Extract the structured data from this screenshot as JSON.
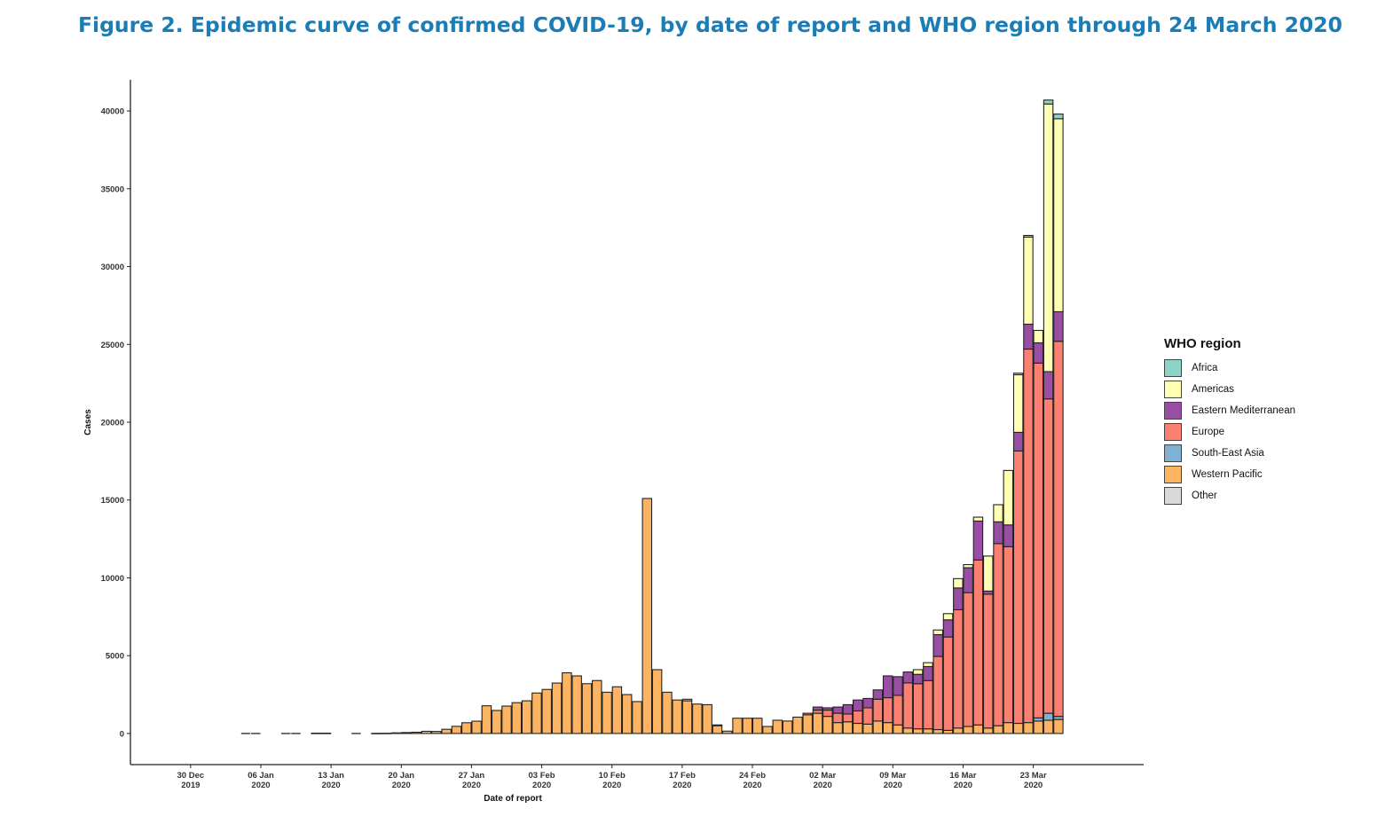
{
  "figure": {
    "title": "Figure 2. Epidemic curve of confirmed COVID-19, by date of report and WHO region through 24 March 2020"
  },
  "chart_data": {
    "type": "bar",
    "stacked": true,
    "xlabel": "Date of report",
    "ylabel": "Cases",
    "ylim": [
      -2000,
      42000
    ],
    "yticks": [
      0,
      5000,
      10000,
      15000,
      20000,
      25000,
      30000,
      35000,
      40000
    ],
    "xlim": [
      "2019-12-24",
      "2020-04-03"
    ],
    "xticks": [
      {
        "date": "2019-12-30",
        "line1": "30 Dec",
        "line2": "2019"
      },
      {
        "date": "2020-01-06",
        "line1": "06 Jan",
        "line2": "2020"
      },
      {
        "date": "2020-01-13",
        "line1": "13 Jan",
        "line2": "2020"
      },
      {
        "date": "2020-01-20",
        "line1": "20 Jan",
        "line2": "2020"
      },
      {
        "date": "2020-01-27",
        "line1": "27 Jan",
        "line2": "2020"
      },
      {
        "date": "2020-02-03",
        "line1": "03 Feb",
        "line2": "2020"
      },
      {
        "date": "2020-02-10",
        "line1": "10 Feb",
        "line2": "2020"
      },
      {
        "date": "2020-02-17",
        "line1": "17 Feb",
        "line2": "2020"
      },
      {
        "date": "2020-02-24",
        "line1": "24 Feb",
        "line2": "2020"
      },
      {
        "date": "2020-03-02",
        "line1": "02 Mar",
        "line2": "2020"
      },
      {
        "date": "2020-03-09",
        "line1": "09 Mar",
        "line2": "2020"
      },
      {
        "date": "2020-03-16",
        "line1": "16 Mar",
        "line2": "2020"
      },
      {
        "date": "2020-03-23",
        "line1": "23 Mar",
        "line2": "2020"
      }
    ],
    "grid": false,
    "legend_position": "right",
    "legend_title": "WHO region",
    "series": [
      {
        "name": "Western Pacific",
        "color": "#fdb462"
      },
      {
        "name": "South-East Asia",
        "color": "#80b1d3"
      },
      {
        "name": "Europe",
        "color": "#fb8072"
      },
      {
        "name": "Eastern Mediterranean",
        "color": "#984ea3"
      },
      {
        "name": "Americas",
        "color": "#ffffb3"
      },
      {
        "name": "Africa",
        "color": "#8dd3c7"
      },
      {
        "name": "Other",
        "color": "#d9d9d9"
      }
    ],
    "legend_order": [
      "Africa",
      "Americas",
      "Eastern Mediterranean",
      "Europe",
      "South-East Asia",
      "Western Pacific",
      "Other"
    ],
    "bars": [
      {
        "x": "2020-01-04",
        "values": [
          0,
          0,
          0,
          0,
          0,
          0,
          0
        ]
      },
      {
        "x": "2020-01-05",
        "values": [
          0,
          0,
          0,
          0,
          0,
          0,
          0
        ]
      },
      {
        "x": "2020-01-08",
        "values": [
          0,
          0,
          0,
          0,
          0,
          0,
          0
        ]
      },
      {
        "x": "2020-01-09",
        "values": [
          0,
          0,
          0,
          0,
          0,
          0,
          0
        ]
      },
      {
        "x": "2020-01-11",
        "values": [
          20,
          0,
          0,
          0,
          0,
          0,
          0
        ]
      },
      {
        "x": "2020-01-12",
        "values": [
          20,
          0,
          0,
          0,
          0,
          0,
          0
        ]
      },
      {
        "x": "2020-01-15",
        "values": [
          0,
          0,
          0,
          0,
          0,
          0,
          0
        ]
      },
      {
        "x": "2020-01-17",
        "values": [
          10,
          0,
          0,
          0,
          0,
          0,
          0
        ]
      },
      {
        "x": "2020-01-18",
        "values": [
          15,
          0,
          0,
          0,
          0,
          0,
          0
        ]
      },
      {
        "x": "2020-01-19",
        "values": [
          40,
          0,
          0,
          0,
          0,
          0,
          0
        ]
      },
      {
        "x": "2020-01-20",
        "values": [
          60,
          0,
          0,
          0,
          0,
          0,
          0
        ]
      },
      {
        "x": "2020-01-21",
        "values": [
          80,
          0,
          0,
          0,
          0,
          0,
          0
        ]
      },
      {
        "x": "2020-01-22",
        "values": [
          140,
          0,
          0,
          0,
          0,
          0,
          0
        ]
      },
      {
        "x": "2020-01-23",
        "values": [
          130,
          0,
          0,
          0,
          0,
          0,
          0
        ]
      },
      {
        "x": "2020-01-24",
        "values": [
          270,
          0,
          0,
          0,
          0,
          0,
          0
        ]
      },
      {
        "x": "2020-01-25",
        "values": [
          460,
          0,
          0,
          0,
          0,
          0,
          0
        ]
      },
      {
        "x": "2020-01-26",
        "values": [
          690,
          0,
          0,
          0,
          0,
          0,
          0
        ]
      },
      {
        "x": "2020-01-27",
        "values": [
          790,
          0,
          0,
          0,
          0,
          0,
          0
        ]
      },
      {
        "x": "2020-01-28",
        "values": [
          1780,
          0,
          0,
          0,
          0,
          0,
          0
        ]
      },
      {
        "x": "2020-01-29",
        "values": [
          1480,
          0,
          0,
          0,
          0,
          0,
          0
        ]
      },
      {
        "x": "2020-01-30",
        "values": [
          1760,
          0,
          0,
          0,
          0,
          0,
          0
        ]
      },
      {
        "x": "2020-01-31",
        "values": [
          1980,
          0,
          0,
          0,
          0,
          0,
          0
        ]
      },
      {
        "x": "2020-02-01",
        "values": [
          2100,
          0,
          0,
          0,
          0,
          0,
          0
        ]
      },
      {
        "x": "2020-02-02",
        "values": [
          2600,
          0,
          0,
          0,
          0,
          0,
          0
        ]
      },
      {
        "x": "2020-02-03",
        "values": [
          2830,
          0,
          0,
          0,
          0,
          0,
          0
        ]
      },
      {
        "x": "2020-02-04",
        "values": [
          3240,
          0,
          0,
          0,
          0,
          0,
          0
        ]
      },
      {
        "x": "2020-02-05",
        "values": [
          3900,
          0,
          0,
          0,
          0,
          0,
          0
        ]
      },
      {
        "x": "2020-02-06",
        "values": [
          3700,
          0,
          0,
          0,
          0,
          0,
          0
        ]
      },
      {
        "x": "2020-02-07",
        "values": [
          3200,
          0,
          0,
          0,
          0,
          0,
          0
        ]
      },
      {
        "x": "2020-02-08",
        "values": [
          3400,
          0,
          0,
          0,
          0,
          0,
          0
        ]
      },
      {
        "x": "2020-02-09",
        "values": [
          2650,
          0,
          0,
          0,
          0,
          0,
          0
        ]
      },
      {
        "x": "2020-02-10",
        "values": [
          3000,
          0,
          0,
          0,
          0,
          0,
          0
        ]
      },
      {
        "x": "2020-02-11",
        "values": [
          2500,
          0,
          0,
          0,
          0,
          0,
          0
        ]
      },
      {
        "x": "2020-02-12",
        "values": [
          2050,
          0,
          0,
          0,
          0,
          0,
          0
        ]
      },
      {
        "x": "2020-02-13",
        "values": [
          15100,
          0,
          0,
          0,
          0,
          0,
          0
        ]
      },
      {
        "x": "2020-02-14",
        "values": [
          4100,
          0,
          0,
          0,
          0,
          0,
          0
        ]
      },
      {
        "x": "2020-02-15",
        "values": [
          2650,
          0,
          0,
          0,
          0,
          0,
          0
        ]
      },
      {
        "x": "2020-02-16",
        "values": [
          2150,
          0,
          0,
          0,
          0,
          0,
          0
        ]
      },
      {
        "x": "2020-02-17",
        "values": [
          2100,
          0,
          0,
          0,
          0,
          0,
          100
        ]
      },
      {
        "x": "2020-02-18",
        "values": [
          1890,
          0,
          0,
          0,
          0,
          0,
          0
        ]
      },
      {
        "x": "2020-02-19",
        "values": [
          1850,
          0,
          0,
          0,
          0,
          0,
          0
        ]
      },
      {
        "x": "2020-02-20",
        "values": [
          500,
          0,
          0,
          0,
          0,
          0,
          50
        ]
      },
      {
        "x": "2020-02-21",
        "values": [
          150,
          0,
          0,
          0,
          0,
          0,
          0
        ]
      },
      {
        "x": "2020-02-22",
        "values": [
          980,
          0,
          0,
          0,
          0,
          0,
          0
        ]
      },
      {
        "x": "2020-02-23",
        "values": [
          980,
          0,
          0,
          0,
          0,
          0,
          0
        ]
      },
      {
        "x": "2020-02-24",
        "values": [
          980,
          0,
          0,
          0,
          0,
          0,
          0
        ]
      },
      {
        "x": "2020-02-25",
        "values": [
          450,
          0,
          0,
          0,
          0,
          0,
          0
        ]
      },
      {
        "x": "2020-02-26",
        "values": [
          850,
          0,
          0,
          0,
          0,
          0,
          0
        ]
      },
      {
        "x": "2020-02-27",
        "values": [
          800,
          0,
          0,
          0,
          0,
          0,
          0
        ]
      },
      {
        "x": "2020-02-28",
        "values": [
          1050,
          0,
          0,
          0,
          0,
          0,
          0
        ]
      },
      {
        "x": "2020-02-29",
        "values": [
          1200,
          0,
          100,
          0,
          0,
          0,
          0
        ]
      },
      {
        "x": "2020-03-01",
        "values": [
          1300,
          0,
          200,
          200,
          0,
          0,
          0
        ]
      },
      {
        "x": "2020-03-02",
        "values": [
          1100,
          0,
          400,
          150,
          0,
          0,
          0
        ]
      },
      {
        "x": "2020-03-03",
        "values": [
          700,
          0,
          600,
          400,
          0,
          0,
          0
        ]
      },
      {
        "x": "2020-03-04",
        "values": [
          750,
          0,
          500,
          600,
          0,
          0,
          0
        ]
      },
      {
        "x": "2020-03-05",
        "values": [
          650,
          0,
          800,
          700,
          0,
          0,
          0
        ]
      },
      {
        "x": "2020-03-06",
        "values": [
          600,
          0,
          1050,
          600,
          0,
          0,
          0
        ]
      },
      {
        "x": "2020-03-07",
        "values": [
          800,
          0,
          1400,
          600,
          0,
          0,
          0
        ]
      },
      {
        "x": "2020-03-08",
        "values": [
          700,
          0,
          1600,
          1400,
          0,
          0,
          0
        ]
      },
      {
        "x": "2020-03-09",
        "values": [
          550,
          0,
          1900,
          1200,
          0,
          0,
          0
        ]
      },
      {
        "x": "2020-03-10",
        "values": [
          350,
          0,
          2900,
          700,
          0,
          0,
          0
        ]
      },
      {
        "x": "2020-03-11",
        "values": [
          300,
          0,
          2900,
          600,
          300,
          0,
          0
        ]
      },
      {
        "x": "2020-03-12",
        "values": [
          300,
          0,
          3100,
          900,
          250,
          0,
          0
        ]
      },
      {
        "x": "2020-03-13",
        "values": [
          250,
          0,
          4700,
          1400,
          300,
          0,
          0
        ]
      },
      {
        "x": "2020-03-14",
        "values": [
          200,
          0,
          6000,
          1100,
          400,
          0,
          0
        ]
      },
      {
        "x": "2020-03-15",
        "values": [
          350,
          0,
          7600,
          1400,
          600,
          0,
          0
        ]
      },
      {
        "x": "2020-03-16",
        "values": [
          450,
          0,
          8600,
          1600,
          200,
          0,
          0
        ]
      },
      {
        "x": "2020-03-17",
        "values": [
          550,
          0,
          10600,
          2500,
          250,
          0,
          0
        ]
      },
      {
        "x": "2020-03-18",
        "values": [
          350,
          0,
          8600,
          200,
          2250,
          0,
          0
        ]
      },
      {
        "x": "2020-03-19",
        "values": [
          500,
          0,
          11700,
          1400,
          1100,
          0,
          0
        ]
      },
      {
        "x": "2020-03-20",
        "values": [
          700,
          0,
          11300,
          1400,
          3500,
          0,
          0
        ]
      },
      {
        "x": "2020-03-21",
        "values": [
          650,
          0,
          17500,
          1200,
          3700,
          0,
          100
        ]
      },
      {
        "x": "2020-03-22",
        "values": [
          700,
          0,
          24000,
          1600,
          5600,
          0,
          100
        ]
      },
      {
        "x": "2020-03-23",
        "values": [
          800,
          200,
          22800,
          1300,
          800,
          0,
          0
        ]
      },
      {
        "x": "2020-03-24",
        "values": [
          850,
          450,
          20200,
          1750,
          17200,
          250,
          0
        ]
      },
      {
        "x": "2020-03-25",
        "values": [
          900,
          200,
          24100,
          1900,
          12400,
          300,
          0
        ]
      }
    ]
  }
}
